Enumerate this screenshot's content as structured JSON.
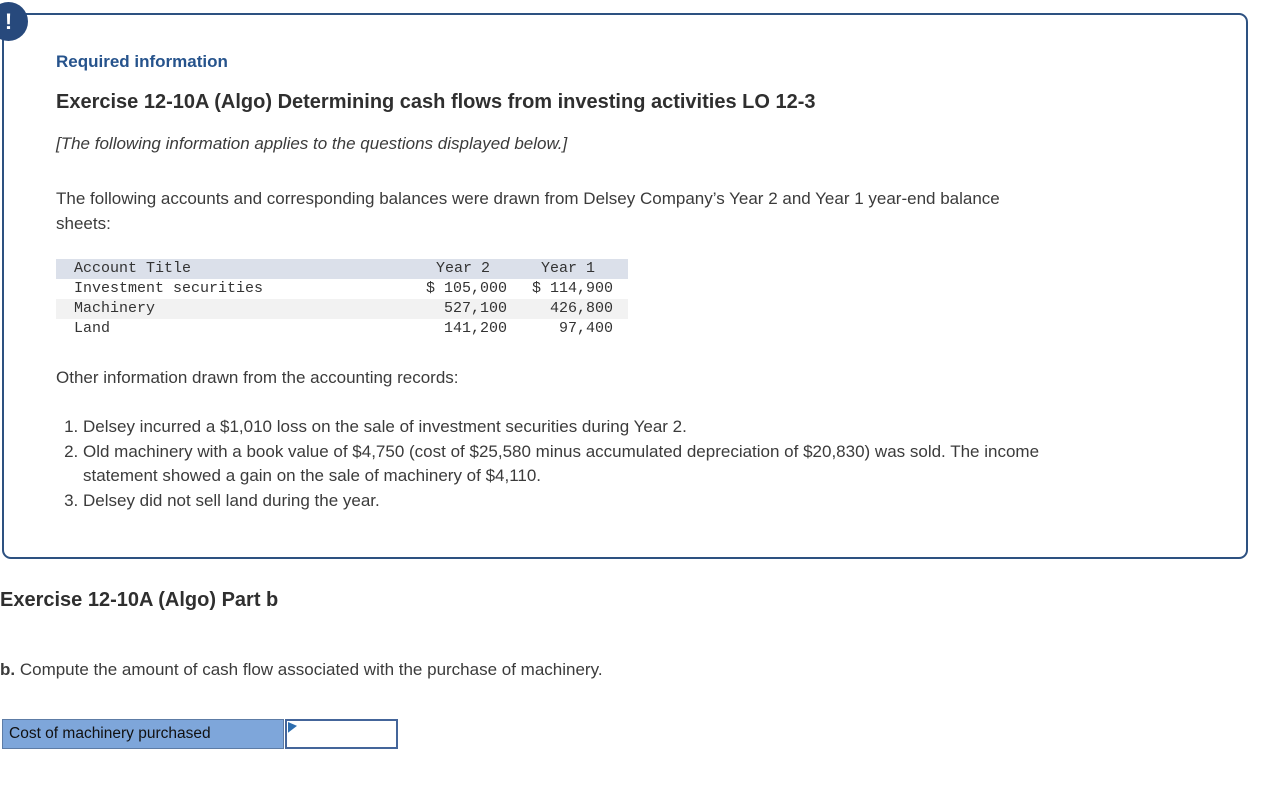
{
  "alert": {
    "glyph": "!"
  },
  "required_info": {
    "label": "Required information",
    "title": "Exercise 12-10A (Algo) Determining cash flows from investing activities LO 12-3",
    "note": "[The following information applies to the questions displayed below.]",
    "intro": "The following accounts and corresponding balances were drawn from Delsey Company’s Year 2 and Year 1 year-end balance sheets:",
    "other_info": "Other information drawn from the accounting records:",
    "items": [
      "Delsey incurred a $1,010 loss on the sale of investment securities during Year 2.",
      "Old machinery with a book value of $4,750 (cost of $25,580 minus accumulated depreciation of $20,830) was sold. The income statement showed a gain on the sale of machinery of $4,110.",
      "Delsey did not sell land during the year."
    ]
  },
  "balance_table": {
    "headers": [
      "Account Title",
      "Year 2",
      "Year 1"
    ],
    "rows": [
      {
        "account": "Investment securities",
        "year2": "$ 105,000",
        "year1": "$ 114,900"
      },
      {
        "account": "Machinery",
        "year2": "527,100",
        "year1": "426,800"
      },
      {
        "account": "Land",
        "year2": "141,200",
        "year1": "97,400"
      }
    ]
  },
  "part_b": {
    "heading": "Exercise 12-10A (Algo) Part b",
    "question_prefix": "b.",
    "question": " Compute the amount of cash flow associated with the purchase of machinery.",
    "answer_row": {
      "label": "Cost of machinery purchased",
      "value": ""
    }
  },
  "colors": {
    "card_border": "#2d5181",
    "alert_circle": "#27497c",
    "required_label_text": "#26538c",
    "heading_text": "#2f2f2f",
    "table_header_bg": "#dbe0ea",
    "table_stripe_bg": "#f2f2f2",
    "answer_label_bg": "#7ea6da",
    "answer_input_border": "#44659a",
    "flag_marker": "#2d6daf"
  }
}
